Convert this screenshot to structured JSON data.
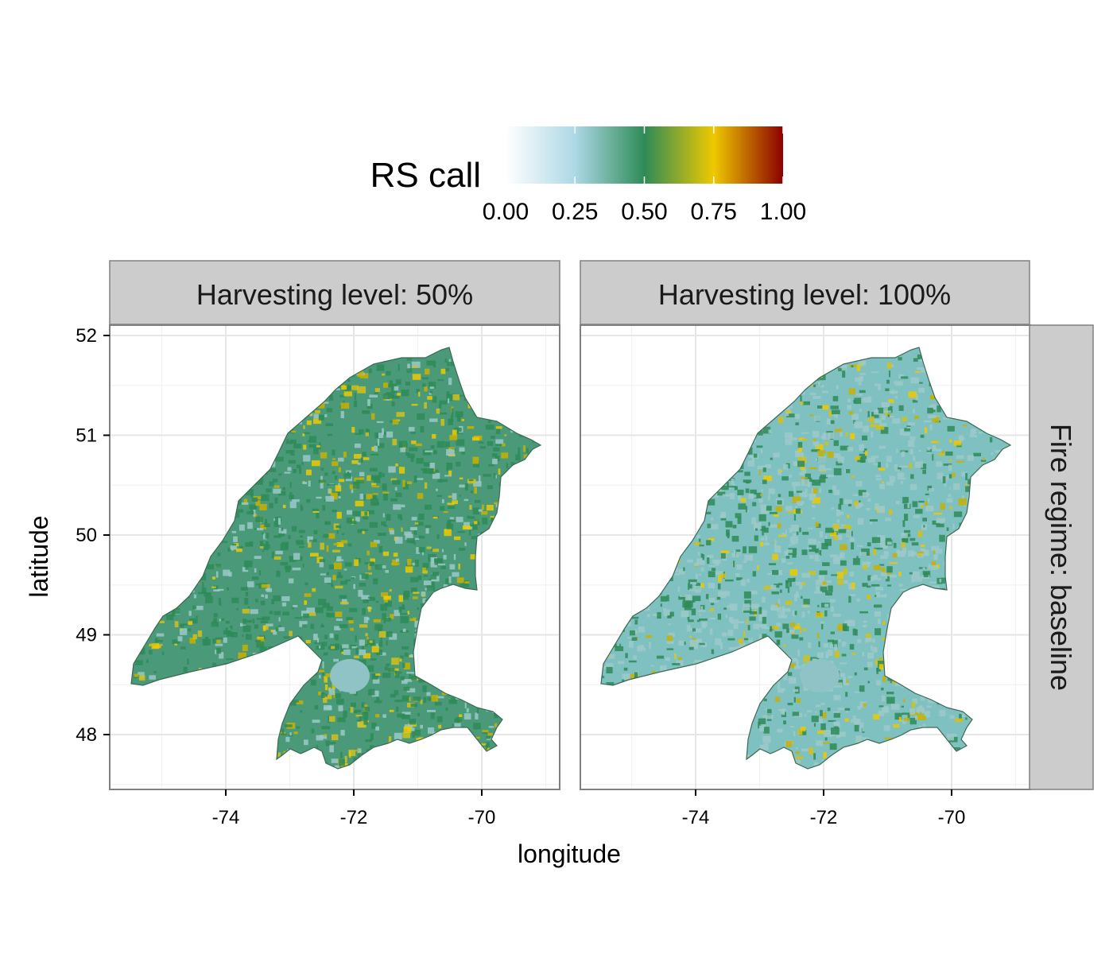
{
  "legend": {
    "title": "RS call",
    "ticks": [
      "0.00",
      "0.25",
      "0.50",
      "0.75",
      "1.00"
    ],
    "tick_values": [
      0,
      0.25,
      0.5,
      0.75,
      1.0
    ],
    "gradient": [
      "#ffffff",
      "#add8e6",
      "#2e8b57",
      "#eec900",
      "#8b0000"
    ]
  },
  "facets": {
    "columns": [
      "Harvesting level: 50%",
      "Harvesting level: 100%"
    ],
    "row": "Fire regime: baseline"
  },
  "axes": {
    "xlabel": "longitude",
    "ylabel": "latitude",
    "x_ticks": [
      "-74",
      "-72",
      "-70"
    ],
    "x_tick_values": [
      -74,
      -72,
      -70
    ],
    "y_ticks": [
      "52",
      "51",
      "50",
      "49",
      "48"
    ],
    "y_tick_values": [
      52,
      51,
      50,
      49,
      48
    ],
    "xlim": [
      -75.8,
      -68.8
    ],
    "ylim": [
      47.5,
      52.1
    ]
  },
  "map": {
    "lake_color": "#8fc3c6",
    "panel_base_color": [
      "#4a9a7a",
      "#7fc0c0"
    ],
    "speckle_colors": [
      "#2e8b57",
      "#9cc9c9",
      "#c8b000",
      "#d4c01a",
      "#eec900"
    ]
  }
}
